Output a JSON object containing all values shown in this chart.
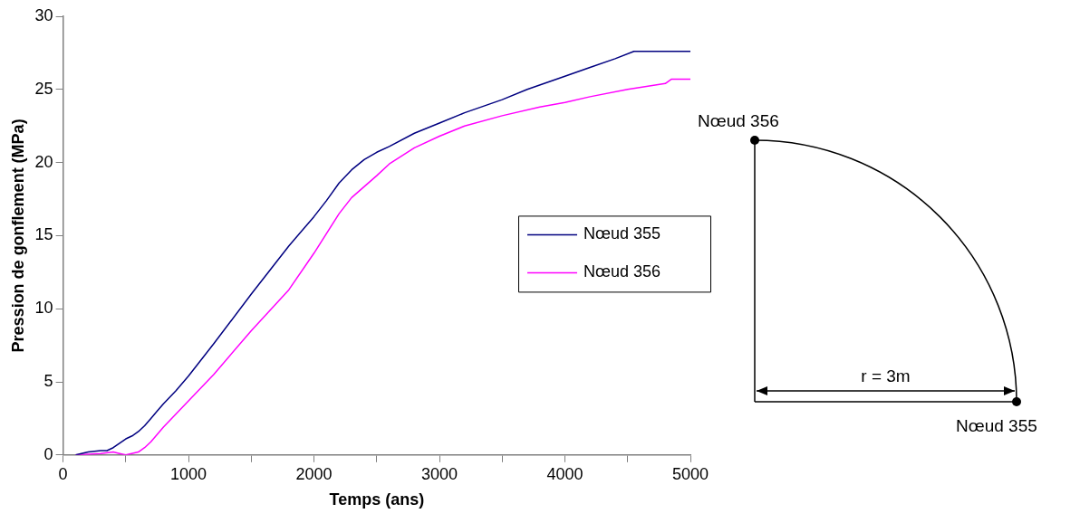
{
  "chart_data": {
    "type": "line",
    "xlabel": "Temps (ans)",
    "ylabel": "Pression de gonflement (MPa)",
    "xlim": [
      0,
      5000
    ],
    "xticks": [
      0,
      {
        "value": 500,
        "label": null
      },
      1000,
      {
        "value": 1500,
        "label": null
      },
      2000,
      {
        "value": 2500,
        "label": null
      },
      3000,
      {
        "value": 3500,
        "label": null
      },
      4000,
      {
        "value": 4500,
        "label": null
      },
      5000
    ],
    "ylim": [
      0,
      30
    ],
    "yticks": [
      0,
      5,
      10,
      15,
      20,
      25,
      30
    ],
    "grid": false,
    "legend": "right",
    "marker": "none",
    "line_style": "solid",
    "series": [
      {
        "name": "Nœud 355",
        "color": "#000080",
        "x": [
          100,
          200,
          300,
          350,
          400,
          450,
          500,
          550,
          600,
          650,
          700,
          750,
          800,
          900,
          1000,
          1200,
          1500,
          1800,
          2000,
          2100,
          2200,
          2300,
          2400,
          2500,
          2600,
          2800,
          3000,
          3200,
          3500,
          3700,
          4000,
          4200,
          4400,
          4550,
          5000
        ],
        "values": [
          0,
          0.2,
          0.3,
          0.3,
          0.5,
          0.8,
          1.1,
          1.3,
          1.6,
          2.0,
          2.5,
          3.0,
          3.5,
          4.4,
          5.4,
          7.6,
          11.0,
          14.3,
          16.3,
          17.4,
          18.6,
          19.5,
          20.2,
          20.7,
          21.1,
          22.0,
          22.7,
          23.4,
          24.3,
          25.0,
          25.9,
          26.5,
          27.1,
          27.6,
          27.6
        ]
      },
      {
        "name": "Nœud 356",
        "color": "#ff00ff",
        "x": [
          100,
          300,
          400,
          450,
          500,
          600,
          650,
          700,
          800,
          1000,
          1200,
          1500,
          1800,
          2000,
          2200,
          2300,
          2500,
          2600,
          2800,
          3000,
          3200,
          3500,
          3800,
          4000,
          4200,
          4500,
          4800,
          4850,
          5000
        ],
        "values": [
          0,
          0.1,
          0.2,
          0.1,
          0,
          0.2,
          0.5,
          0.9,
          1.9,
          3.7,
          5.5,
          8.5,
          11.3,
          13.8,
          16.5,
          17.6,
          19.1,
          19.9,
          21.0,
          21.8,
          22.5,
          23.2,
          23.8,
          24.1,
          24.5,
          25.0,
          25.4,
          25.7,
          25.7
        ]
      }
    ],
    "annotations": [
      "Nœud 356",
      "Nœud 355",
      "r = 3m"
    ]
  }
}
